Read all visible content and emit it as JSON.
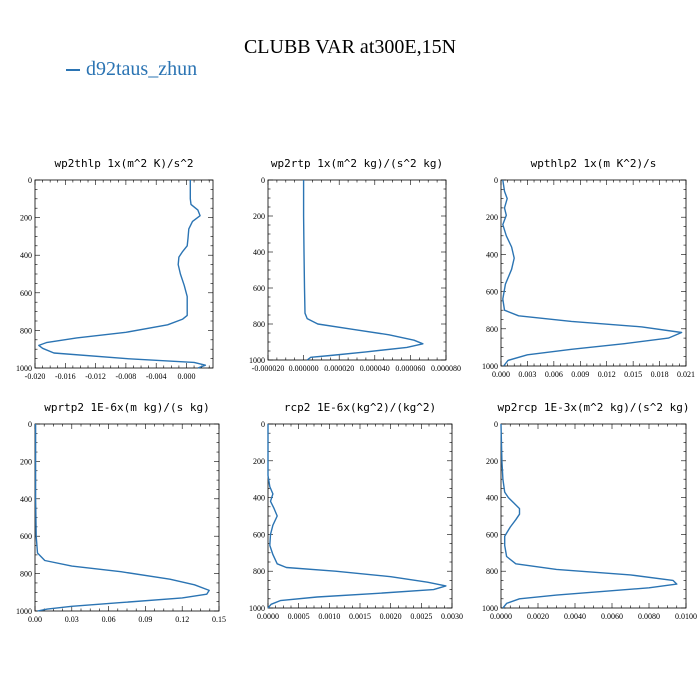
{
  "title": "CLUBB VAR at300E,15N",
  "legend": {
    "label": "d92taus_zhun",
    "color": "#2b74b3"
  },
  "chart_data": [
    {
      "type": "line",
      "title": "wp2thlp   1x(m^2 K)/s^2",
      "xlim": [
        -0.02,
        0.0035
      ],
      "xticks": [
        -0.02,
        -0.016,
        -0.012,
        -0.008,
        -0.004,
        0.0
      ],
      "xticklabels": [
        "-0.020",
        "-0.016",
        "-0.012",
        "-0.008",
        "-0.004",
        "0.000"
      ],
      "ylim": [
        1000,
        0
      ],
      "yticks": [
        0,
        200,
        400,
        600,
        800,
        1000
      ],
      "series": [
        {
          "values": [
            [
              0.0005,
              0
            ],
            [
              0.0005,
              50
            ],
            [
              0.0005,
              100
            ],
            [
              0.0006,
              130
            ],
            [
              0.0015,
              160
            ],
            [
              0.0018,
              190
            ],
            [
              0.0008,
              220
            ],
            [
              0.0003,
              260
            ],
            [
              0.0002,
              310
            ],
            [
              0.0001,
              350
            ],
            [
              -0.0005,
              380
            ],
            [
              -0.001,
              410
            ],
            [
              -0.0011,
              450
            ],
            [
              -0.0008,
              500
            ],
            [
              -0.0003,
              560
            ],
            [
              0.0001,
              620
            ],
            [
              0.0001,
              680
            ],
            [
              0.0001,
              720
            ],
            [
              -0.0005,
              740
            ],
            [
              -0.0025,
              770
            ],
            [
              -0.008,
              810
            ],
            [
              -0.0145,
              840
            ],
            [
              -0.0185,
              865
            ],
            [
              -0.0195,
              880
            ],
            [
              -0.019,
              895
            ],
            [
              -0.0175,
              920
            ],
            [
              -0.008,
              950
            ],
            [
              0.001,
              970
            ],
            [
              0.0025,
              985
            ],
            [
              0.0015,
              1000
            ]
          ]
        }
      ]
    },
    {
      "type": "line",
      "title": "wp2rtp   1x(m^2 kg)/(s^2 kg)",
      "xlim": [
        -2e-05,
        8e-05
      ],
      "xticks": [
        -2e-05,
        0.0,
        2e-05,
        4e-05,
        6e-05,
        8e-05
      ],
      "xticklabels": [
        "-0.000020",
        "0.000000",
        "0.000020",
        "0.000040",
        "0.000060",
        "0.000080"
      ],
      "ylim": [
        1000,
        0
      ],
      "yticks": [
        0,
        200,
        400,
        600,
        800,
        1000
      ],
      "series": [
        {
          "values": [
            [
              0.0,
              0
            ],
            [
              0.0,
              200
            ],
            [
              2e-07,
              400
            ],
            [
              5e-07,
              600
            ],
            [
              8e-07,
              740
            ],
            [
              2e-06,
              770
            ],
            [
              8e-06,
              800
            ],
            [
              2.8e-05,
              830
            ],
            [
              4.8e-05,
              860
            ],
            [
              6.2e-05,
              890
            ],
            [
              6.7e-05,
              910
            ],
            [
              5.8e-05,
              930
            ],
            [
              3.5e-05,
              955
            ],
            [
              1.5e-05,
              975
            ],
            [
              4e-06,
              985
            ],
            [
              2e-06,
              1000
            ]
          ]
        }
      ]
    },
    {
      "type": "line",
      "title": "wpthlp2   1x(m K^2)/s",
      "xlim": [
        0.0,
        0.021
      ],
      "xticks": [
        0.0,
        0.003,
        0.006,
        0.009,
        0.012,
        0.015,
        0.018,
        0.021
      ],
      "xticklabels": [
        "0.000",
        "0.003",
        "0.006",
        "0.009",
        "0.012",
        "0.015",
        "0.018",
        "0.021"
      ],
      "ylim": [
        1000,
        0
      ],
      "yticks": [
        0,
        200,
        400,
        600,
        800,
        1000
      ],
      "series": [
        {
          "values": [
            [
              0.0002,
              0
            ],
            [
              0.0004,
              60
            ],
            [
              0.0007,
              100
            ],
            [
              0.0004,
              150
            ],
            [
              0.0006,
              190
            ],
            [
              0.0002,
              240
            ],
            [
              0.0006,
              300
            ],
            [
              0.0012,
              360
            ],
            [
              0.0015,
              420
            ],
            [
              0.0012,
              480
            ],
            [
              0.0005,
              560
            ],
            [
              0.0002,
              640
            ],
            [
              0.0004,
              700
            ],
            [
              0.002,
              730
            ],
            [
              0.008,
              760
            ],
            [
              0.016,
              790
            ],
            [
              0.0205,
              820
            ],
            [
              0.019,
              850
            ],
            [
              0.014,
              880
            ],
            [
              0.008,
              910
            ],
            [
              0.003,
              940
            ],
            [
              0.0008,
              970
            ],
            [
              0.0003,
              1000
            ]
          ]
        }
      ]
    },
    {
      "type": "line",
      "title": "wprtp2   1E-6x(m kg)/(s kg)",
      "xlim": [
        0.0,
        0.15
      ],
      "xticks": [
        0.0,
        0.03,
        0.06,
        0.09,
        0.12,
        0.15
      ],
      "xticklabels": [
        "0.00",
        "0.03",
        "0.06",
        "0.09",
        "0.12",
        "0.15"
      ],
      "ylim": [
        1000,
        0
      ],
      "yticks": [
        0,
        200,
        400,
        600,
        800,
        1000
      ],
      "series": [
        {
          "values": [
            [
              0.0005,
              0
            ],
            [
              0.0005,
              400
            ],
            [
              0.001,
              600
            ],
            [
              0.002,
              690
            ],
            [
              0.008,
              730
            ],
            [
              0.03,
              760
            ],
            [
              0.07,
              790
            ],
            [
              0.11,
              830
            ],
            [
              0.13,
              860
            ],
            [
              0.142,
              890
            ],
            [
              0.14,
              910
            ],
            [
              0.12,
              930
            ],
            [
              0.07,
              955
            ],
            [
              0.03,
              975
            ],
            [
              0.01,
              990
            ],
            [
              0.002,
              1000
            ]
          ]
        }
      ]
    },
    {
      "type": "line",
      "title": "rcp2   1E-6x(kg^2)/(kg^2)",
      "xlim": [
        0.0,
        0.003
      ],
      "xticks": [
        0.0,
        0.0005,
        0.001,
        0.0015,
        0.002,
        0.0025,
        0.003
      ],
      "xticklabels": [
        "0.0000",
        "0.0005",
        "0.0010",
        "0.0015",
        "0.0020",
        "0.0025",
        "0.0030"
      ],
      "ylim": [
        1000,
        0
      ],
      "yticks": [
        0,
        200,
        400,
        600,
        800,
        1000
      ],
      "series": [
        {
          "values": [
            [
              0.0,
              0
            ],
            [
              0.0,
              280
            ],
            [
              3e-05,
              340
            ],
            [
              8e-05,
              380
            ],
            [
              4e-05,
              420
            ],
            [
              0.0001,
              460
            ],
            [
              0.00015,
              500
            ],
            [
              8e-05,
              550
            ],
            [
              4e-05,
              600
            ],
            [
              3e-05,
              660
            ],
            [
              8e-05,
              710
            ],
            [
              0.00015,
              760
            ],
            [
              0.0003,
              780
            ],
            [
              0.0011,
              800
            ],
            [
              0.002,
              830
            ],
            [
              0.0026,
              860
            ],
            [
              0.0029,
              880
            ],
            [
              0.0027,
              900
            ],
            [
              0.0018,
              920
            ],
            [
              0.0008,
              940
            ],
            [
              0.0002,
              960
            ],
            [
              5e-05,
              980
            ],
            [
              0.0,
              1000
            ]
          ]
        }
      ]
    },
    {
      "type": "line",
      "title": "wp2rcp   1E-3x(m^2 kg)/(s^2 kg)",
      "xlim": [
        0.0,
        0.01
      ],
      "xticks": [
        0.0,
        0.002,
        0.004,
        0.006,
        0.008,
        0.01
      ],
      "xticklabels": [
        "0.0000",
        "0.0020",
        "0.0040",
        "0.0060",
        "0.0080",
        "0.0100"
      ],
      "ylim": [
        1000,
        0
      ],
      "yticks": [
        0,
        200,
        400,
        600,
        800,
        1000
      ],
      "series": [
        {
          "values": [
            [
              0.0,
              0
            ],
            [
              5e-05,
              200
            ],
            [
              0.0001,
              300
            ],
            [
              0.0002,
              370
            ],
            [
              0.0004,
              400
            ],
            [
              0.0007,
              430
            ],
            [
              0.001,
              460
            ],
            [
              0.001,
              490
            ],
            [
              0.0008,
              520
            ],
            [
              0.0005,
              560
            ],
            [
              0.0002,
              610
            ],
            [
              0.0002,
              660
            ],
            [
              0.0003,
              720
            ],
            [
              0.0008,
              760
            ],
            [
              0.003,
              790
            ],
            [
              0.007,
              820
            ],
            [
              0.0093,
              850
            ],
            [
              0.0095,
              870
            ],
            [
              0.008,
              890
            ],
            [
              0.0055,
              910
            ],
            [
              0.003,
              930
            ],
            [
              0.001,
              950
            ],
            [
              0.0003,
              975
            ],
            [
              0.0001,
              1000
            ]
          ]
        }
      ]
    }
  ]
}
